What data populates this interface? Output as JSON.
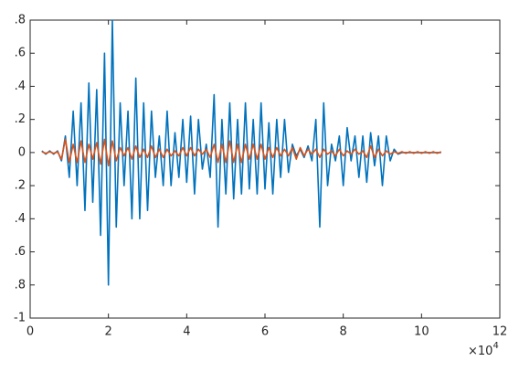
{
  "chart_data": {
    "type": "line",
    "x": [
      0.3,
      0.4,
      0.5,
      0.6,
      0.7,
      0.8,
      0.9,
      1.0,
      1.1,
      1.2,
      1.3,
      1.4,
      1.5,
      1.6,
      1.7,
      1.8,
      1.9,
      2.0,
      2.1,
      2.2,
      2.3,
      2.4,
      2.5,
      2.6,
      2.7,
      2.8,
      2.9,
      3.0,
      3.1,
      3.2,
      3.3,
      3.4,
      3.5,
      3.6,
      3.7,
      3.8,
      3.9,
      4.0,
      4.1,
      4.2,
      4.3,
      4.4,
      4.5,
      4.6,
      4.7,
      4.8,
      4.9,
      5.0,
      5.1,
      5.2,
      5.3,
      5.4,
      5.5,
      5.6,
      5.7,
      5.8,
      5.9,
      6.0,
      6.1,
      6.2,
      6.3,
      6.4,
      6.5,
      6.6,
      6.7,
      6.8,
      6.9,
      7.0,
      7.1,
      7.2,
      7.3,
      7.4,
      7.5,
      7.6,
      7.7,
      7.8,
      7.9,
      8.0,
      8.1,
      8.2,
      8.3,
      8.4,
      8.5,
      8.6,
      8.7,
      8.8,
      8.9,
      9.0,
      9.1,
      9.2,
      9.3,
      9.4,
      9.5,
      9.6,
      9.7,
      9.8,
      9.9,
      10.0,
      10.1,
      10.2,
      10.3,
      10.4,
      10.5
    ],
    "series": [
      {
        "color": "#0072bd",
        "values": [
          0.01,
          -0.01,
          0.01,
          -0.01,
          0.01,
          -0.05,
          0.1,
          -0.15,
          0.25,
          -0.2,
          0.3,
          -0.35,
          0.42,
          -0.3,
          0.38,
          -0.5,
          0.6,
          -0.8,
          0.8,
          -0.45,
          0.3,
          -0.2,
          0.25,
          -0.4,
          0.45,
          -0.4,
          0.3,
          -0.35,
          0.25,
          -0.15,
          0.1,
          -0.2,
          0.25,
          -0.2,
          0.12,
          -0.15,
          0.2,
          -0.18,
          0.22,
          -0.25,
          0.2,
          -0.1,
          0.05,
          -0.15,
          0.35,
          -0.45,
          0.2,
          -0.25,
          0.3,
          -0.28,
          0.2,
          -0.25,
          0.3,
          -0.22,
          0.2,
          -0.25,
          0.3,
          -0.22,
          0.18,
          -0.25,
          0.2,
          -0.15,
          0.2,
          -0.12,
          0.05,
          -0.02,
          0.02,
          -0.03,
          0.04,
          -0.05,
          0.2,
          -0.45,
          0.3,
          -0.2,
          0.05,
          -0.05,
          0.1,
          -0.2,
          0.15,
          -0.05,
          0.1,
          -0.15,
          0.1,
          -0.18,
          0.12,
          -0.08,
          0.1,
          -0.2,
          0.1,
          -0.05,
          0.02,
          -0.01,
          0,
          0,
          0,
          0,
          0,
          0,
          0,
          0,
          0,
          0,
          0
        ]
      },
      {
        "color": "#d95319",
        "values": [
          0.005,
          -0.005,
          0.005,
          -0.005,
          0.005,
          -0.04,
          0.08,
          -0.06,
          0.05,
          -0.06,
          0.07,
          -0.06,
          0.05,
          -0.04,
          0.06,
          -0.07,
          0.08,
          -0.08,
          0.07,
          -0.05,
          0.03,
          -0.02,
          0.03,
          -0.04,
          0.04,
          -0.03,
          0.02,
          -0.03,
          0.04,
          -0.03,
          0.02,
          -0.03,
          0.02,
          -0.02,
          0.01,
          -0.02,
          0.03,
          -0.02,
          0.03,
          -0.02,
          0.02,
          -0.01,
          0.02,
          -0.03,
          0.05,
          -0.06,
          0.05,
          -0.06,
          0.07,
          -0.06,
          0.05,
          -0.06,
          0.05,
          -0.04,
          0.05,
          -0.04,
          0.05,
          -0.04,
          0.03,
          -0.03,
          0.03,
          -0.02,
          0.02,
          -0.02,
          0.03,
          -0.04,
          0.03,
          -0.02,
          0.02,
          -0.01,
          0.02,
          -0.03,
          0.02,
          -0.01,
          0.01,
          -0.02,
          0.02,
          -0.02,
          0.01,
          -0.01,
          0.02,
          -0.01,
          0.01,
          -0.03,
          0.04,
          -0.03,
          0.02,
          -0.02,
          0.01,
          -0.01,
          0.005,
          -0.005,
          0.005,
          -0.005,
          0.005,
          -0.005,
          0.005,
          -0.005,
          0.005,
          -0.005,
          0.005,
          -0.005,
          0.005
        ]
      }
    ],
    "xlim": [
      0,
      12
    ],
    "xticks": [
      0,
      2,
      4,
      6,
      8,
      10,
      12
    ],
    "x_exponent_base": "×10",
    "x_exponent": "4",
    "ylim": [
      -1,
      0.8
    ],
    "yticks": [
      {
        "value": 0.8,
        "label": ".8"
      },
      {
        "value": 0.6,
        "label": ".6"
      },
      {
        "value": 0.4,
        "label": ".4"
      },
      {
        "value": 0.2,
        "label": ".2"
      },
      0,
      {
        "value": -0.2,
        "label": ".2"
      },
      {
        "value": -0.4,
        "label": ".4"
      },
      {
        "value": -0.6,
        "label": ".6"
      },
      {
        "value": -0.8,
        "label": ".8"
      },
      -1
    ]
  }
}
